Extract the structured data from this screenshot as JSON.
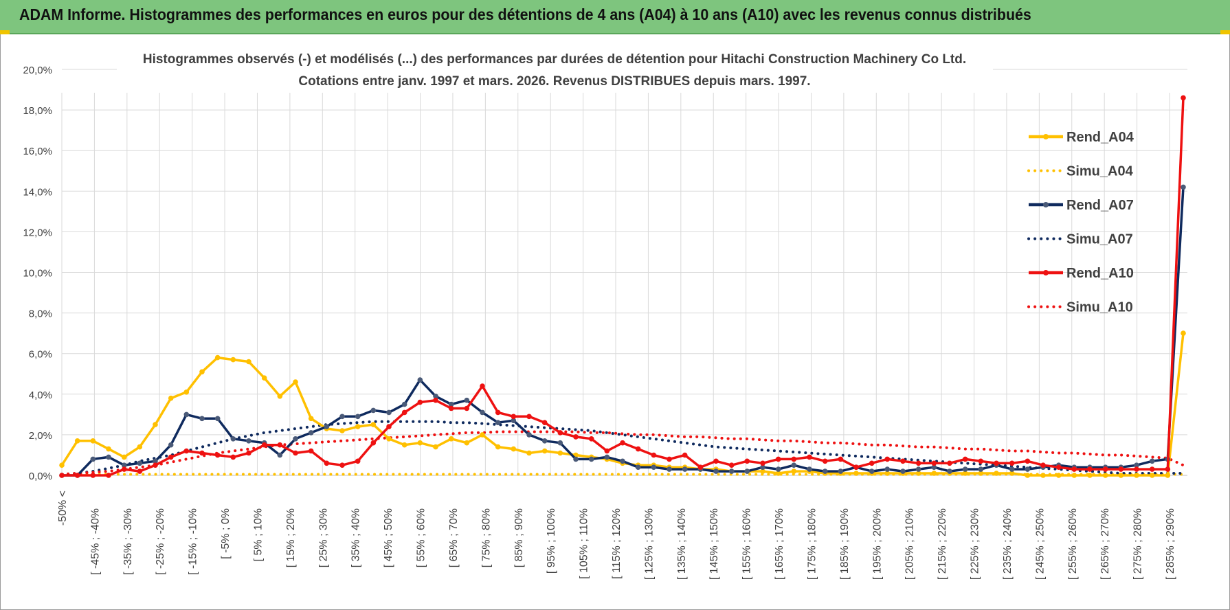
{
  "banner": {
    "title": "ADAM Informe. Histogrammes des performances en euros pour des détentions de 4 ans (A04) à 10 ans (A10) avec les revenus connus distribués"
  },
  "colors": {
    "banner_bg": "#7ec57e",
    "A04": "#ffc000",
    "A07": "#0f2a5e",
    "A10": "#ee1111",
    "grid": "#d9d9d9"
  },
  "chart_data": {
    "type": "line",
    "title_line1": "Histogrammes observés (-) et modélisés (...) des performances par durées de détention pour Hitachi Construction Machinery Co Ltd.",
    "title_line2": "Cotations entre janv. 1997 et mars. 2026. Revenus DISTRIBUES depuis mars. 1997.",
    "ylim": [
      0,
      20
    ],
    "yticks": [
      "0,0%",
      "2,0%",
      "4,0%",
      "6,0%",
      "8,0%",
      "10,0%",
      "12,0%",
      "14,0%",
      "16,0%",
      "18,0%",
      "20,0%"
    ],
    "grid": true,
    "legend_position": "right",
    "x_labels": [
      "-50% <",
      "[ -45% ; -40%",
      "[ -35% ; -30%",
      "[ -25% ; -20%",
      "[ -15% ; -10%",
      "[ -5% ; 0%",
      "[ 5% ; 10%",
      "[ 15% ; 20%",
      "[ 25% ; 30%",
      "[ 35% ; 40%",
      "[ 45% ; 50%",
      "[ 55% ; 60%",
      "[ 65% ; 70%",
      "[ 75% ; 80%",
      "[ 85% ; 90%",
      "[ 95% ; 100%",
      "[ 105% ; 110%",
      "[ 115% ; 120%",
      "[ 125% ; 130%",
      "[ 135% ; 140%",
      "[ 145% ; 150%",
      "[ 155% ; 160%",
      "[ 165% ; 170%",
      "[ 175% ; 180%",
      "[ 185% ; 190%",
      "[ 195% ; 200%",
      "[ 205% ; 210%",
      "[ 215% ; 220%",
      "[ 225% ; 230%",
      "[ 235% ; 240%",
      "[ 245% ; 250%",
      "[ 255% ; 260%",
      "[ 265% ; 270%",
      "[ 275% ; 280%",
      "[ 285% ; 290%"
    ],
    "series": [
      {
        "name": "Rend_A04",
        "style": "solid",
        "color": "#ffc000",
        "values": [
          0.5,
          1.7,
          1.7,
          1.3,
          0.9,
          1.4,
          2.5,
          3.8,
          4.1,
          5.1,
          5.8,
          5.7,
          5.6,
          4.8,
          3.9,
          4.6,
          2.8,
          2.3,
          2.2,
          2.4,
          2.5,
          1.8,
          1.5,
          1.6,
          1.4,
          1.8,
          1.6,
          2.0,
          1.4,
          1.3,
          1.1,
          1.2,
          1.1,
          1.0,
          0.9,
          0.8,
          0.6,
          0.5,
          0.5,
          0.4,
          0.4,
          0.3,
          0.3,
          0.2,
          0.2,
          0.2,
          0.1,
          0.2,
          0.2,
          0.1,
          0.1,
          0.1,
          0.1,
          0.1,
          0.1,
          0.1,
          0.1,
          0.1,
          0.1,
          0.1,
          0.1,
          0.1,
          0.0,
          0.0,
          0.0,
          0.0,
          0.0,
          0.0,
          0.0,
          0.0,
          0.0,
          0.0,
          7.0
        ]
      },
      {
        "name": "Simu_A04",
        "style": "dotted",
        "color": "#ffc000",
        "values": [
          0.05,
          0.05,
          0.05,
          0.05,
          0.05,
          0.05,
          0.05,
          0.05,
          0.05,
          0.05,
          0.05,
          0.05,
          0.05,
          0.05,
          0.05,
          0.05,
          0.05,
          0.05,
          0.05,
          0.05,
          0.05,
          0.05,
          0.05,
          0.05,
          0.05,
          0.05,
          0.05,
          0.05,
          0.05,
          0.05,
          0.05,
          0.05,
          0.05,
          0.05,
          0.05,
          0.05,
          0.05,
          0.05,
          0.05,
          0.05,
          0.05,
          0.05,
          0.05,
          0.05,
          0.05,
          0.05,
          0.05,
          0.05,
          0.05,
          0.05,
          0.05,
          0.05,
          0.05,
          0.05,
          0.05,
          0.05,
          0.05,
          0.05,
          0.05,
          0.05,
          0.05,
          0.05,
          0.05,
          0.05,
          0.05,
          0.05,
          0.05,
          0.05,
          0.05,
          0.05,
          0.05,
          0.05,
          0.05
        ]
      },
      {
        "name": "Rend_A07",
        "style": "solid",
        "color": "#0f2a5e",
        "values": [
          0.0,
          0.0,
          0.8,
          0.9,
          0.5,
          0.6,
          0.7,
          1.5,
          3.0,
          2.8,
          2.8,
          1.8,
          1.7,
          1.6,
          1.0,
          1.8,
          2.1,
          2.4,
          2.9,
          2.9,
          3.2,
          3.1,
          3.5,
          4.7,
          3.9,
          3.5,
          3.7,
          3.1,
          2.6,
          2.7,
          2.0,
          1.7,
          1.6,
          0.8,
          0.8,
          0.9,
          0.7,
          0.4,
          0.4,
          0.3,
          0.3,
          0.3,
          0.2,
          0.2,
          0.2,
          0.4,
          0.3,
          0.5,
          0.3,
          0.2,
          0.2,
          0.4,
          0.2,
          0.3,
          0.2,
          0.3,
          0.4,
          0.2,
          0.3,
          0.3,
          0.5,
          0.3,
          0.3,
          0.4,
          0.5,
          0.4,
          0.4,
          0.4,
          0.4,
          0.5,
          0.7,
          0.8,
          14.2
        ]
      },
      {
        "name": "Simu_A07",
        "style": "dotted",
        "color": "#0f2a5e",
        "values": [
          0.05,
          0.1,
          0.2,
          0.35,
          0.5,
          0.7,
          0.85,
          1.0,
          1.2,
          1.4,
          1.6,
          1.8,
          1.95,
          2.1,
          2.2,
          2.3,
          2.4,
          2.5,
          2.55,
          2.6,
          2.65,
          2.65,
          2.65,
          2.65,
          2.65,
          2.6,
          2.6,
          2.55,
          2.5,
          2.45,
          2.4,
          2.35,
          2.3,
          2.25,
          2.2,
          2.1,
          2.0,
          1.9,
          1.8,
          1.7,
          1.6,
          1.5,
          1.4,
          1.35,
          1.3,
          1.25,
          1.2,
          1.15,
          1.1,
          1.05,
          1.0,
          0.95,
          0.9,
          0.85,
          0.8,
          0.75,
          0.7,
          0.65,
          0.6,
          0.55,
          0.5,
          0.45,
          0.4,
          0.35,
          0.3,
          0.25,
          0.2,
          0.15,
          0.1,
          0.1,
          0.1,
          0.1,
          0.1
        ]
      },
      {
        "name": "Rend_A10",
        "style": "solid",
        "color": "#ee1111",
        "values": [
          0.0,
          0.0,
          0.0,
          0.0,
          0.3,
          0.2,
          0.5,
          0.9,
          1.2,
          1.1,
          1.0,
          0.9,
          1.1,
          1.5,
          1.5,
          1.1,
          1.2,
          0.6,
          0.5,
          0.7,
          1.6,
          2.4,
          3.1,
          3.6,
          3.7,
          3.3,
          3.3,
          4.4,
          3.1,
          2.9,
          2.9,
          2.6,
          2.1,
          1.9,
          1.8,
          1.2,
          1.6,
          1.3,
          1.0,
          0.8,
          1.0,
          0.4,
          0.7,
          0.5,
          0.7,
          0.6,
          0.8,
          0.8,
          0.9,
          0.7,
          0.8,
          0.4,
          0.6,
          0.8,
          0.7,
          0.6,
          0.6,
          0.6,
          0.8,
          0.7,
          0.6,
          0.6,
          0.7,
          0.5,
          0.4,
          0.3,
          0.3,
          0.3,
          0.3,
          0.3,
          0.3,
          0.3,
          18.6
        ]
      },
      {
        "name": "Simu_A10",
        "style": "dotted",
        "color": "#ee1111",
        "values": [
          0.05,
          0.1,
          0.15,
          0.2,
          0.3,
          0.4,
          0.5,
          0.65,
          0.8,
          0.95,
          1.1,
          1.2,
          1.3,
          1.4,
          1.5,
          1.55,
          1.6,
          1.65,
          1.7,
          1.75,
          1.8,
          1.85,
          1.9,
          1.95,
          2.0,
          2.05,
          2.1,
          2.1,
          2.15,
          2.15,
          2.15,
          2.15,
          2.15,
          2.15,
          2.1,
          2.1,
          2.05,
          2.0,
          2.0,
          1.95,
          1.9,
          1.9,
          1.85,
          1.8,
          1.8,
          1.75,
          1.7,
          1.7,
          1.65,
          1.6,
          1.6,
          1.55,
          1.5,
          1.5,
          1.45,
          1.4,
          1.4,
          1.35,
          1.3,
          1.3,
          1.25,
          1.2,
          1.2,
          1.15,
          1.1,
          1.1,
          1.05,
          1.0,
          1.0,
          0.95,
          0.9,
          0.85,
          0.5
        ]
      }
    ]
  }
}
